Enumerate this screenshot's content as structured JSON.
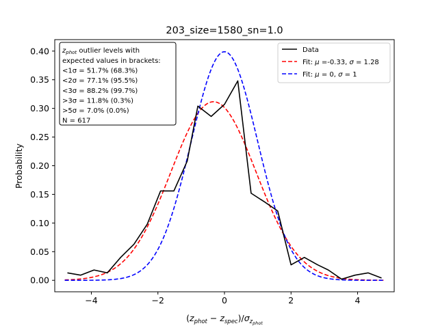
{
  "chart_data": {
    "type": "line",
    "title": "203_size=1580_sn=1.0",
    "ylabel": "Probability",
    "xlabel_parts": {
      "open": "(",
      "z1": "z",
      "z1_sub": "phot",
      "minus": " − ",
      "z2": "z",
      "z2_sub": "spec",
      "close": ")/",
      "sigma": "σ",
      "sigma_sub": "z",
      "sigma_subsub": "phot"
    },
    "xlim": [
      -5.1,
      5.1
    ],
    "ylim": [
      -0.02,
      0.42
    ],
    "xticks": [
      -4,
      -2,
      0,
      2,
      4
    ],
    "yticks": [
      0.0,
      0.05,
      0.1,
      0.15,
      0.2,
      0.25,
      0.3,
      0.35,
      0.4
    ],
    "ytick_labels": [
      "0.00",
      "0.05",
      "0.10",
      "0.15",
      "0.20",
      "0.25",
      "0.30",
      "0.35",
      "0.40"
    ],
    "xtick_labels": [
      "−4",
      "−2",
      "0",
      "2",
      "4"
    ],
    "grid": false,
    "legend_placement": "top-right",
    "series": [
      {
        "name": "Data",
        "style": "solid",
        "color": "#000000",
        "x": [
          -4.72,
          -4.32,
          -3.92,
          -3.52,
          -3.12,
          -2.72,
          -2.32,
          -1.92,
          -1.52,
          -1.12,
          -0.8,
          -0.4,
          0.0,
          0.4,
          0.8,
          1.2,
          1.6,
          2.0,
          2.4,
          2.8,
          3.12,
          3.52,
          3.92,
          4.32,
          4.72
        ],
        "y": [
          0.013,
          0.009,
          0.018,
          0.013,
          0.04,
          0.063,
          0.098,
          0.156,
          0.156,
          0.208,
          0.304,
          0.286,
          0.307,
          0.348,
          0.152,
          0.137,
          0.121,
          0.027,
          0.04,
          0.027,
          0.018,
          0.002,
          0.009,
          0.013,
          0.004
        ]
      },
      {
        "name_parts": {
          "prefix": "Fit: ",
          "mu": "μ",
          "mu_val": " =-0.33, ",
          "sigma": "σ",
          "sigma_val": " = 1.28"
        },
        "style": "dashed",
        "color": "#ff0000",
        "mu": -0.33,
        "sigma": 1.28
      },
      {
        "name_parts": {
          "prefix": "Fit: ",
          "mu": "μ",
          "mu_val": " = 0, ",
          "sigma": "σ",
          "sigma_val": " = 1"
        },
        "style": "dashed",
        "color": "#0000ff",
        "mu": 0,
        "sigma": 1
      }
    ],
    "annotation": {
      "title_z": "z",
      "title_sub": "phot",
      "title_rest": " outlier levels with",
      "lines": [
        " expected values in brackets:",
        "<1σ = 51.7% (68.3%)",
        "<2σ = 77.1% (95.5%)",
        "<3σ = 88.2% (99.7%)",
        ">3σ = 11.8% (0.3%)",
        ">5σ = 7.0% (0.0%)",
        "N = 617"
      ]
    }
  }
}
